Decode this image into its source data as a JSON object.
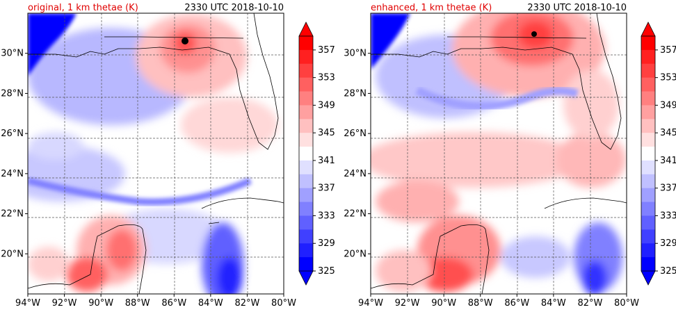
{
  "chart_data": [
    {
      "type": "heatmap",
      "title": "original, 1 km thetae (K)",
      "time_label": "2330 UTC 2018-10-10",
      "title_color": "#e00000",
      "x_ticks": [
        "94°W",
        "92°W",
        "90°W",
        "88°W",
        "86°W",
        "84°W",
        "82°W",
        "80°W"
      ],
      "y_ticks": [
        "20°N",
        "22°N",
        "24°N",
        "26°N",
        "28°N",
        "30°N"
      ],
      "xlim": [
        -94,
        -80
      ],
      "ylim": [
        18,
        32
      ],
      "grid": true,
      "colorbar": {
        "labels": [
          "325",
          "329",
          "333",
          "337",
          "341",
          "345",
          "349",
          "353",
          "357"
        ],
        "range": [
          325,
          359
        ],
        "extend": "both",
        "colors": [
          "#0000ff",
          "#2020ff",
          "#4040ff",
          "#6060ff",
          "#8080ff",
          "#a0a0ff",
          "#c0c0ff",
          "#e0e0ff",
          "#ffffff",
          "#ffe0e0",
          "#ffc0c0",
          "#ffa0a0",
          "#ff8080",
          "#ff6060",
          "#ff4040",
          "#ff2020",
          "#ff0000"
        ]
      },
      "storm_center": {
        "lon": -85.4,
        "lat": 30.7
      }
    },
    {
      "type": "heatmap",
      "title": "enhanced, 1 km thetae (K)",
      "time_label": "2330 UTC 2018-10-10",
      "title_color": "#e00000",
      "x_ticks": [
        "94°W",
        "92°W",
        "90°W",
        "88°W",
        "86°W",
        "84°W",
        "82°W",
        "80°W"
      ],
      "y_ticks": [
        "20°N",
        "22°N",
        "24°N",
        "26°N",
        "28°N",
        "30°N"
      ],
      "xlim": [
        -94,
        -80
      ],
      "ylim": [
        18,
        32
      ],
      "grid": true,
      "colorbar": {
        "labels": [
          "325",
          "329",
          "333",
          "337",
          "341",
          "345",
          "349",
          "353",
          "357"
        ],
        "range": [
          325,
          359
        ],
        "extend": "both",
        "colors": [
          "#0000ff",
          "#2020ff",
          "#4040ff",
          "#6060ff",
          "#8080ff",
          "#a0a0ff",
          "#c0c0ff",
          "#e0e0ff",
          "#ffffff",
          "#ffe0e0",
          "#ffc0c0",
          "#ffa0a0",
          "#ff8080",
          "#ff6060",
          "#ff4040",
          "#ff2020",
          "#ff0000"
        ]
      },
      "storm_center": {
        "lon": -85.1,
        "lat": 31.0
      }
    }
  ]
}
